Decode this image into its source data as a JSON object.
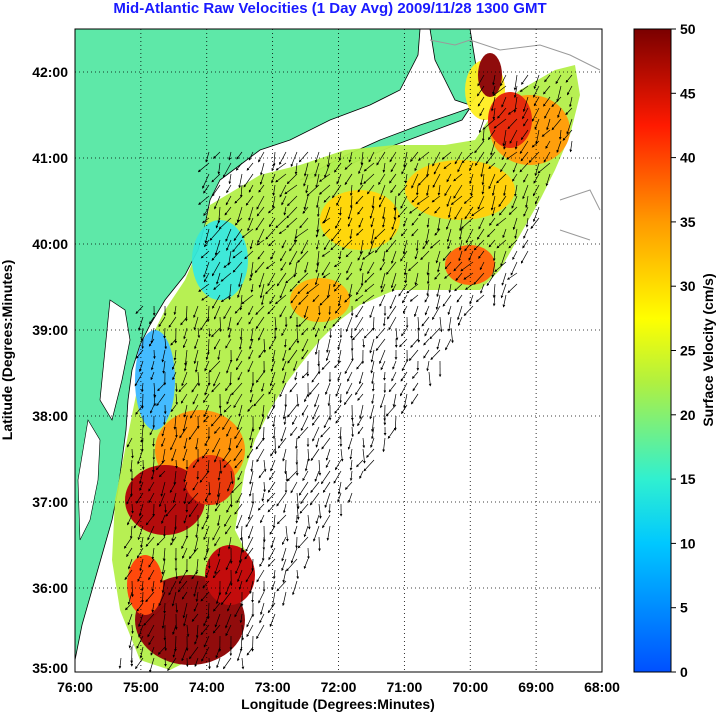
{
  "title": "Mid-Atlantic Raw Velocities (1 Day Avg) 2009/11/28 1300 GMT",
  "map": {
    "xlabel": "Longitude (Degrees:Minutes)",
    "ylabel": "Latitude (Degrees:Minutes)",
    "lon_ticks": [
      "76:00",
      "75:00",
      "74:00",
      "73:00",
      "72:00",
      "71:00",
      "70:00",
      "69:00",
      "68:00"
    ],
    "lat_ticks": [
      "42:00",
      "41:00",
      "40:00",
      "39:00",
      "38:00",
      "37:00",
      "36:00",
      "35:00"
    ],
    "grid": true,
    "land_color": "#5ee8a8"
  },
  "colorbar": {
    "label": "Surface Velocity (cm/s)",
    "ticks": [
      "50",
      "45",
      "40",
      "35",
      "30",
      "25",
      "20",
      "15",
      "10",
      "5",
      "0"
    ],
    "min": 0,
    "max": 50
  }
}
